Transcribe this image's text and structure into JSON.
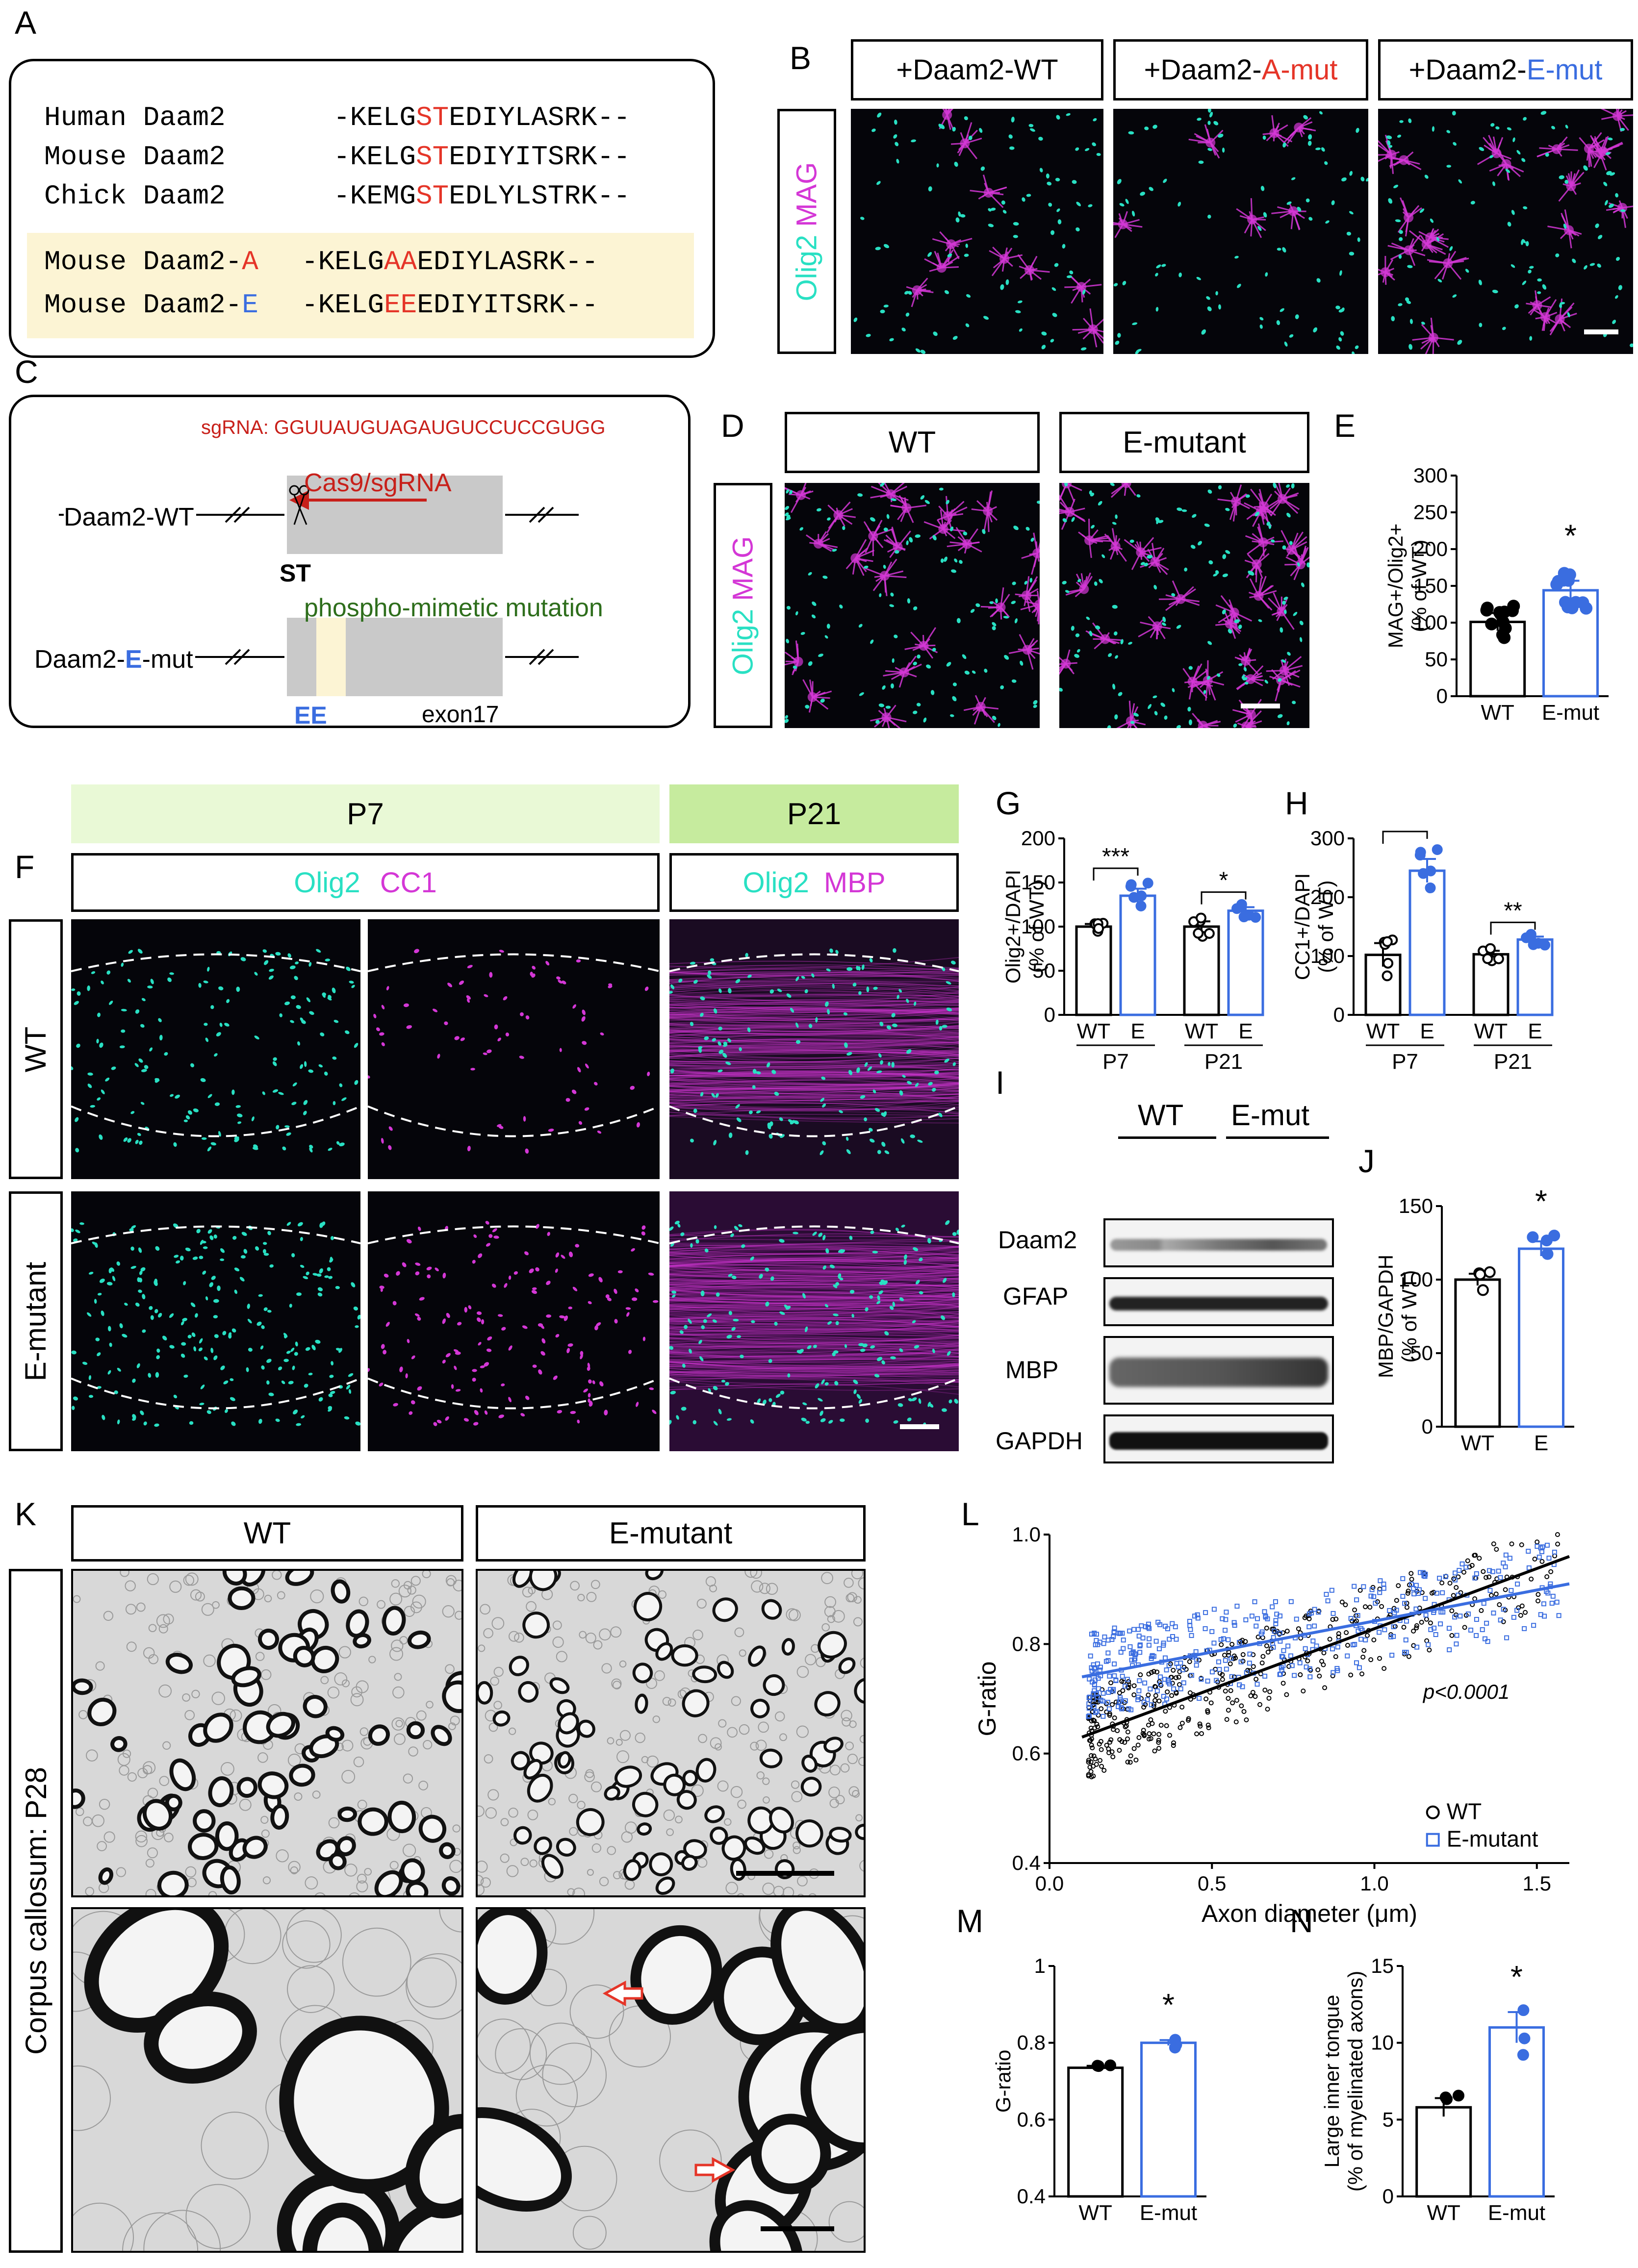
{
  "panels": {
    "A": "A",
    "B": "B",
    "C": "C",
    "D": "D",
    "E": "E",
    "F": "F",
    "G": "G",
    "H": "H",
    "I": "I",
    "J": "J",
    "K": "K",
    "L": "L",
    "M": "M",
    "N": "N"
  },
  "panelA": {
    "rows": [
      {
        "label": "Human Daam2",
        "pre": "-KELG",
        "site": "ST",
        "post": "EDIYLASRK--"
      },
      {
        "label": "Mouse Daam2",
        "pre": "-KELG",
        "site": "ST",
        "post": "EDIYITSRK--"
      },
      {
        "label": "Chick Daam2",
        "pre": "-KEMG",
        "site": "ST",
        "post": "EDLYLSTRK--"
      }
    ],
    "mut": [
      {
        "label": "Mouse Daam2-",
        "suffix": "A",
        "pre": "-KELG",
        "site": "AA",
        "post": "EDIYLASRK--"
      },
      {
        "label": "Mouse Daam2-",
        "suffix": "E",
        "pre": "-KELG",
        "site": "EE",
        "post": "EDIYITSRK--"
      }
    ]
  },
  "panelB": {
    "headers": [
      {
        "pre": "+Daam2-WT",
        "suf": ""
      },
      {
        "pre": "+Daam2-",
        "suf": "A-mut"
      },
      {
        "pre": "+Daam2-",
        "suf": "E-mut"
      }
    ],
    "stain1": "Olig2",
    "stain2": "MAG"
  },
  "panelC": {
    "sgrna": "sgRNA: GGUUAUGUAGAUGUCCUCCGUGG",
    "cas9": "Cas9/sgRNA",
    "wt": "Daam2-WT",
    "st": "ST",
    "pm": "phospho-mimetic mutation",
    "emut_pre": "Daam2-",
    "emut_e": "E",
    "emut_post": "-mut",
    "ee": "EE",
    "exon": "exon17"
  },
  "panelD": {
    "headers": [
      "WT",
      "E-mutant"
    ],
    "stain1": "Olig2",
    "stain2": "MAG"
  },
  "panelF": {
    "p7": "P7",
    "p21": "P21",
    "s1": "Olig2",
    "s2": "CC1",
    "s3": "Olig2",
    "s4": "MBP",
    "rows": [
      "WT",
      "E-mutant"
    ]
  },
  "panelI": {
    "groups": [
      "WT",
      "E-mut"
    ],
    "proteins": [
      "Daam2",
      "GFAP",
      "MBP",
      "GAPDH"
    ]
  },
  "panelK": {
    "headers": [
      "WT",
      "E-mutant"
    ],
    "side": "Corpus callosum: P28"
  },
  "colors": {
    "wt": "#000000",
    "emut": "#3a6de0",
    "cyan": "#29e0c3",
    "magenta": "#d437d6",
    "red": "#e53528",
    "green": "#2e6e1c"
  },
  "chart_data": [
    {
      "id": "E",
      "type": "bar",
      "ylabel": "MAG+/Olig2+\n(% of WT)",
      "categories": [
        "WT",
        "E-mut"
      ],
      "values": [
        101,
        144
      ],
      "errors": [
        12,
        13
      ],
      "ylim": [
        0,
        300
      ],
      "yticks": [
        0,
        50,
        100,
        150,
        200,
        250,
        300
      ],
      "sig": [
        "*"
      ]
    },
    {
      "id": "G",
      "type": "bar",
      "ylabel": "Olig2+/DAPI\n(% of WT)",
      "categories": [
        "WT",
        "E",
        "WT",
        "E"
      ],
      "groups": [
        "P7",
        "P21"
      ],
      "values": [
        100,
        135,
        100,
        118
      ],
      "errors": [
        3,
        8,
        6,
        4
      ],
      "ylim": [
        0,
        200
      ],
      "yticks": [
        0,
        50,
        100,
        150,
        200
      ],
      "sig": [
        "***",
        "*"
      ]
    },
    {
      "id": "H",
      "type": "bar",
      "ylabel": "CC1+/DAPI\n(% of WT)",
      "categories": [
        "WT",
        "E",
        "WT",
        "E"
      ],
      "groups": [
        "P7",
        "P21"
      ],
      "values": [
        102,
        245,
        103,
        128
      ],
      "errors": [
        20,
        20,
        6,
        5
      ],
      "ylim": [
        0,
        300
      ],
      "yticks": [
        0,
        100,
        200,
        300
      ],
      "sig": [
        "***",
        "**"
      ]
    },
    {
      "id": "J",
      "type": "bar",
      "ylabel": "MBP/GAPDH\n(% of WT)",
      "categories": [
        "WT",
        "E"
      ],
      "values": [
        100,
        121
      ],
      "errors": [
        4,
        5
      ],
      "ylim": [
        0,
        150
      ],
      "yticks": [
        0,
        50,
        100,
        150
      ],
      "sig": [
        "*"
      ]
    },
    {
      "id": "L",
      "type": "scatter",
      "xlabel": "Axon diameter (μm)",
      "ylabel": "G-ratio",
      "xlim": [
        0,
        1.6
      ],
      "ylim": [
        0.4,
        1.0
      ],
      "xticks": [
        0.0,
        0.5,
        1.0,
        1.5
      ],
      "yticks": [
        0.4,
        0.6,
        0.8,
        1.0
      ],
      "series": [
        {
          "name": "WT",
          "fit": [
            [
              0.1,
              0.63
            ],
            [
              1.6,
              0.96
            ]
          ]
        },
        {
          "name": "E-mutant",
          "fit": [
            [
              0.1,
              0.74
            ],
            [
              1.6,
              0.91
            ]
          ]
        }
      ],
      "annotation": "p<0.0001"
    },
    {
      "id": "M",
      "type": "bar",
      "ylabel": "G-ratio",
      "categories": [
        "WT",
        "E-mut"
      ],
      "values": [
        0.735,
        0.8
      ],
      "errors": [
        0.005,
        0.007
      ],
      "ylim": [
        0.4,
        1.0
      ],
      "yticks": [
        0.4,
        0.6,
        0.8,
        1.0
      ],
      "sig": [
        "*"
      ]
    },
    {
      "id": "N",
      "type": "bar",
      "ylabel": "Large inner tongue\n(% of myelinated axons)",
      "categories": [
        "WT",
        "E-mut"
      ],
      "values": [
        5.8,
        11.0
      ],
      "errors": [
        0.6,
        1.0
      ],
      "ylim": [
        0,
        15
      ],
      "yticks": [
        0,
        5,
        10,
        15
      ],
      "sig": [
        "*"
      ]
    }
  ]
}
